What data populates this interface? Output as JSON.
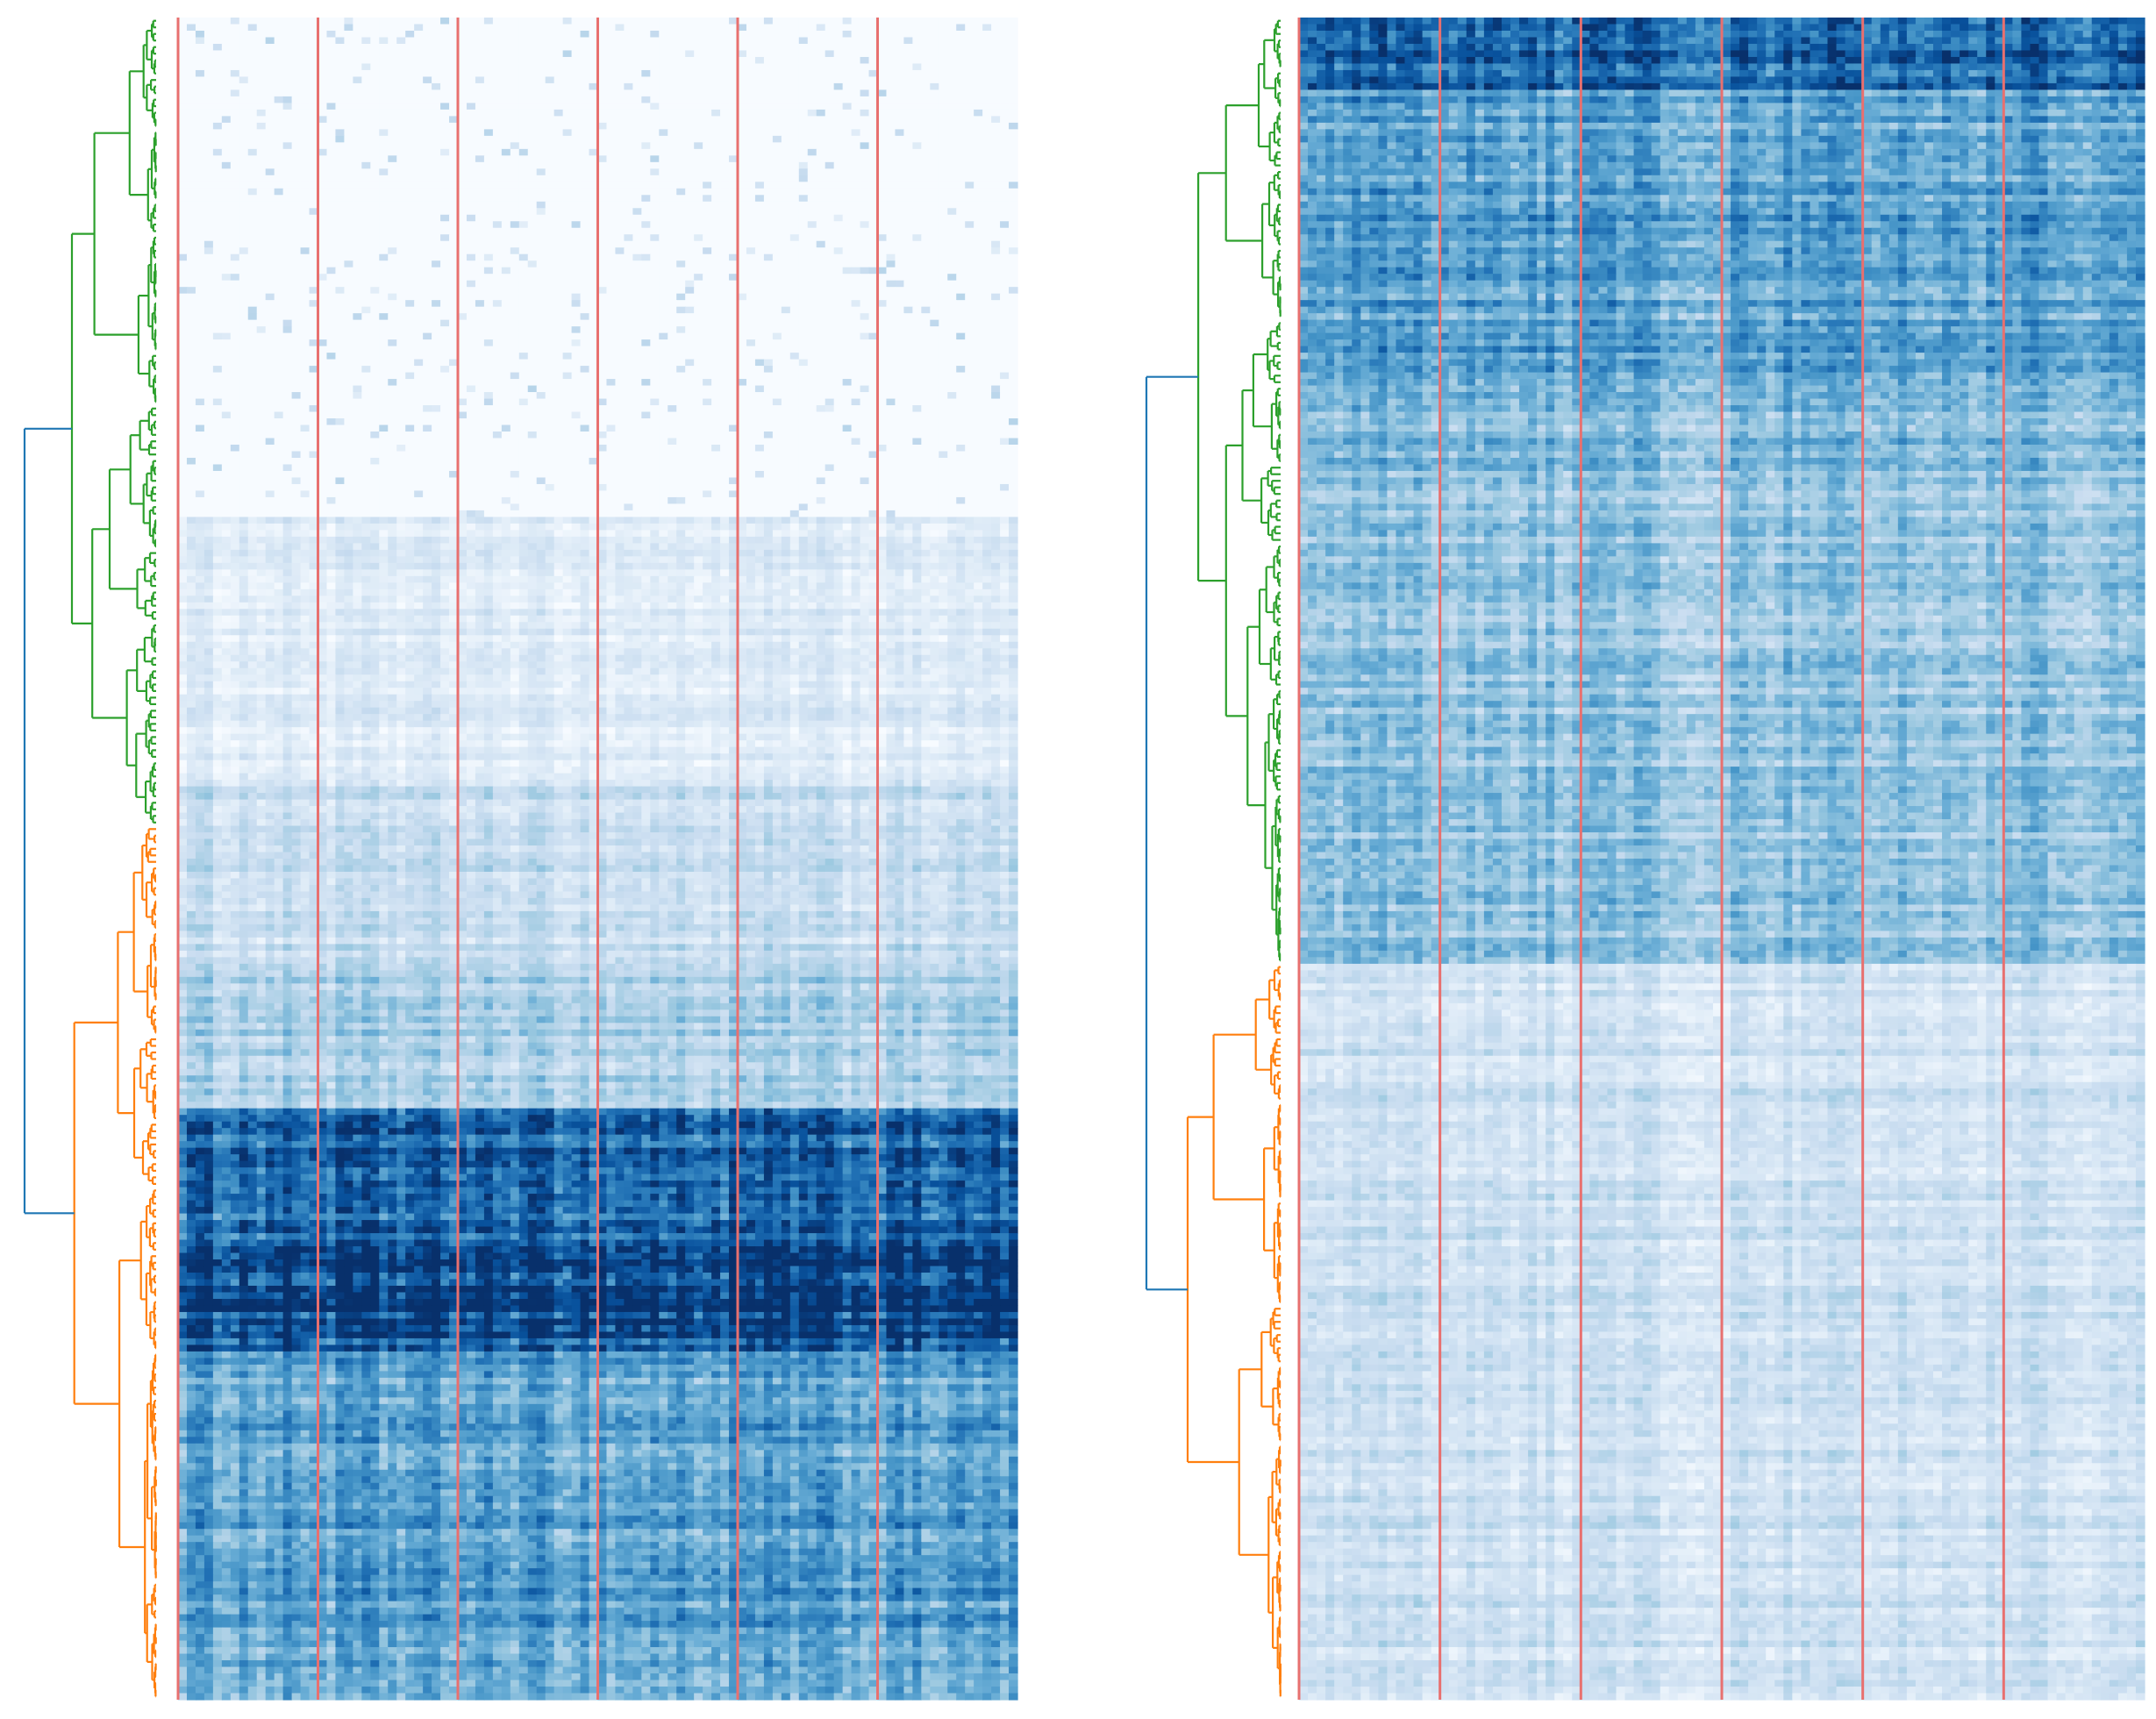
{
  "chart_data": [
    {
      "type": "heatmap",
      "panel": "left",
      "title": "",
      "xlabel": "",
      "ylabel": "",
      "colormap": "Blues",
      "value_range": [
        0,
        1
      ],
      "n_rows": 256,
      "n_cols": 96,
      "column_group_boundaries": [
        0,
        16,
        32,
        48,
        64,
        80
      ],
      "row_clusters": [
        {
          "name": "cluster-green",
          "color": "#2ca02c",
          "rows": [
            0,
            122
          ]
        },
        {
          "name": "cluster-orange",
          "color": "#ff7f0e",
          "rows": [
            123,
            255
          ]
        }
      ],
      "root_link_color": "#1f77b4",
      "row_band_intensity": [
        {
          "rows": [
            0,
            75
          ],
          "mean": 0.03
        },
        {
          "rows": [
            76,
            115
          ],
          "mean": 0.12
        },
        {
          "rows": [
            116,
            145
          ],
          "mean": 0.22
        },
        {
          "rows": [
            146,
            165
          ],
          "mean": 0.32
        },
        {
          "rows": [
            166,
            186
          ],
          "mean": 0.78
        },
        {
          "rows": [
            187,
            198
          ],
          "mean": 0.95
        },
        {
          "rows": [
            199,
            202
          ],
          "mean": 0.85
        },
        {
          "rows": [
            203,
            255
          ],
          "mean": 0.55
        }
      ],
      "boundary_line_color": "#e8706f"
    },
    {
      "type": "heatmap",
      "panel": "right",
      "title": "",
      "xlabel": "",
      "ylabel": "",
      "colormap": "Blues",
      "value_range": [
        0,
        1
      ],
      "n_rows": 256,
      "n_cols": 96,
      "column_group_boundaries": [
        0,
        16,
        32,
        48,
        64,
        80
      ],
      "row_clusters": [
        {
          "name": "cluster-green",
          "color": "#2ca02c",
          "rows": [
            0,
            143
          ]
        },
        {
          "name": "cluster-orange",
          "color": "#ff7f0e",
          "rows": [
            144,
            255
          ]
        }
      ],
      "root_link_color": "#1f77b4",
      "row_band_intensity": [
        {
          "rows": [
            0,
            10
          ],
          "mean": 0.8
        },
        {
          "rows": [
            11,
            55
          ],
          "mean": 0.55
        },
        {
          "rows": [
            56,
            70
          ],
          "mean": 0.45
        },
        {
          "rows": [
            71,
            143
          ],
          "mean": 0.4
        },
        {
          "rows": [
            144,
            255
          ],
          "mean": 0.2
        }
      ],
      "boundary_line_color": "#e8706f"
    }
  ]
}
